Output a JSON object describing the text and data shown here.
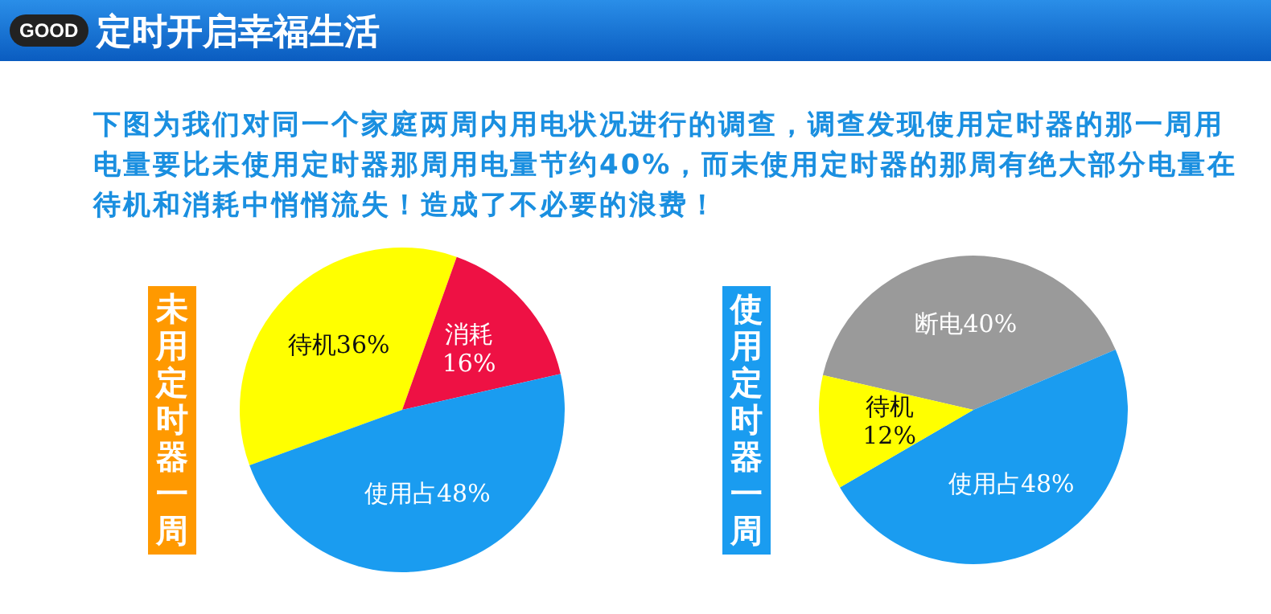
{
  "chart_data": [
    {
      "type": "other",
      "title": "定时开启幸福生活",
      "annotations": [
        "GOOD",
        "下图为我们对同一个家庭两周内用电状况进行的调查，调查发现使用定时器的那一周用电量要比未使用定时器那周用电量节约40%，而未使用定时器的那周有绝大部分电量在待机和消耗中悄悄流失！造成了不必要的浪费！"
      ]
    },
    {
      "type": "pie",
      "title": "未用定时器一周",
      "categories": [
        "待机",
        "消耗",
        "使用占"
      ],
      "values": [
        36,
        16,
        48
      ],
      "value_labels": [
        "36%",
        "16%",
        "48%"
      ],
      "colors": [
        "#ffff00",
        "#ee1144",
        "#1a9cf0"
      ]
    },
    {
      "type": "pie",
      "title": "使用定时器一周",
      "categories": [
        "断电",
        "使用占",
        "待机"
      ],
      "values": [
        40,
        48,
        12
      ],
      "value_labels": [
        "40%",
        "48%",
        "12%"
      ],
      "colors": [
        "#9a9a9a",
        "#1a9cf0",
        "#ffff00"
      ]
    }
  ]
}
